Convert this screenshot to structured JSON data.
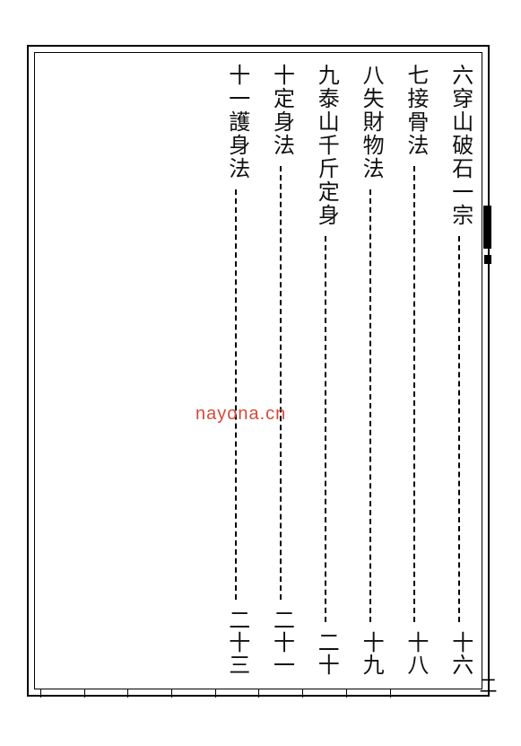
{
  "page": {
    "background_color": "#ffffff",
    "border_color": "#000000",
    "text_color": "#111111",
    "watermark_color": "#d44b3a",
    "font_size_main": 24,
    "font_size_pagenum": 20,
    "columns_total": 10,
    "entries": [
      {
        "num": "六",
        "title": "穿山破石一宗",
        "page": "十六"
      },
      {
        "num": "七",
        "title": "接骨法",
        "page": "十八"
      },
      {
        "num": "八",
        "title": "失財物法",
        "page": "十九"
      },
      {
        "num": "九",
        "title": "泰山千斤定身",
        "page": "二十"
      },
      {
        "num": "十",
        "title": "定身法",
        "page": "二十一"
      },
      {
        "num": "十一",
        "title": "護身法",
        "page": "二十三"
      }
    ],
    "empty_columns_after": 4,
    "watermark_text": "nayona.cn",
    "outer_page_number": "二",
    "ruler_ticks": 10
  }
}
